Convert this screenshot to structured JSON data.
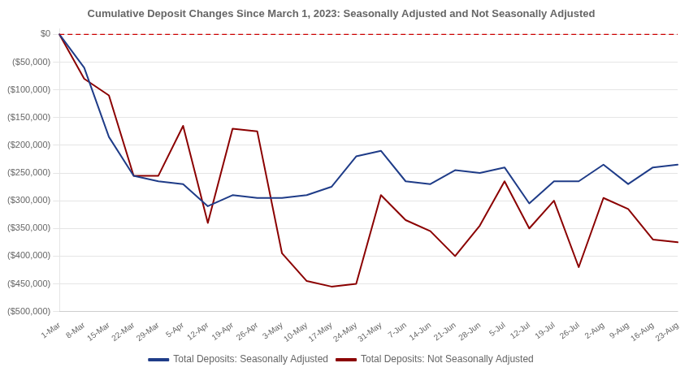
{
  "chart_data": {
    "type": "line",
    "title": "Cumulative Deposit Changes Since March 1, 2023: Seasonally Adjusted and Not Seasonally Adjusted",
    "categories": [
      "1-Mar",
      "8-Mar",
      "15-Mar",
      "22-Mar",
      "29-Mar",
      "5-Apr",
      "12-Apr",
      "19-Apr",
      "26-Apr",
      "3-May",
      "10-May",
      "17-May",
      "24-May",
      "31-May",
      "7-Jun",
      "14-Jun",
      "21-Jun",
      "28-Jun",
      "5-Jul",
      "12-Jul",
      "19-Jul",
      "26-Jul",
      "2-Aug",
      "9-Aug",
      "16-Aug",
      "23-Aug"
    ],
    "series": [
      {
        "name": "Total Deposits: Seasonally Adjusted",
        "color": "#1F3C88",
        "line_style": "solid",
        "values": [
          0,
          -60000,
          -185000,
          -255000,
          -265000,
          -270000,
          -310000,
          -290000,
          -295000,
          -295000,
          -290000,
          -275000,
          -220000,
          -210000,
          -265000,
          -270000,
          -245000,
          -250000,
          -240000,
          -305000,
          -265000,
          -265000,
          -235000,
          -270000,
          -240000,
          -235000
        ]
      },
      {
        "name": "Total Deposits: Not Seasonally Adjusted",
        "color": "#8B0000",
        "line_style": "solid",
        "values": [
          0,
          -80000,
          -110000,
          -255000,
          -255000,
          -165000,
          -340000,
          -170000,
          -175000,
          -395000,
          -445000,
          -455000,
          -450000,
          -290000,
          -335000,
          -355000,
          -400000,
          -345000,
          -265000,
          -350000,
          -300000,
          -420000,
          -295000,
          -315000,
          -370000,
          -375000
        ]
      }
    ],
    "reference_line": {
      "value": 0,
      "color": "#CC0000",
      "line_style": "dashed"
    },
    "ylim": [
      -500000,
      10000
    ],
    "yticks": [
      {
        "value": 0,
        "label": "$0"
      },
      {
        "value": -50000,
        "label": "($50,000)"
      },
      {
        "value": -100000,
        "label": "($100,000)"
      },
      {
        "value": -150000,
        "label": "($150,000)"
      },
      {
        "value": -200000,
        "label": "($200,000)"
      },
      {
        "value": -250000,
        "label": "($250,000)"
      },
      {
        "value": -300000,
        "label": "($300,000)"
      },
      {
        "value": -350000,
        "label": "($350,000)"
      },
      {
        "value": -400000,
        "label": "($400,000)"
      },
      {
        "value": -450000,
        "label": "($450,000)"
      },
      {
        "value": -500000,
        "label": "($500,000)"
      }
    ],
    "grid": true,
    "legend": "bottom"
  }
}
